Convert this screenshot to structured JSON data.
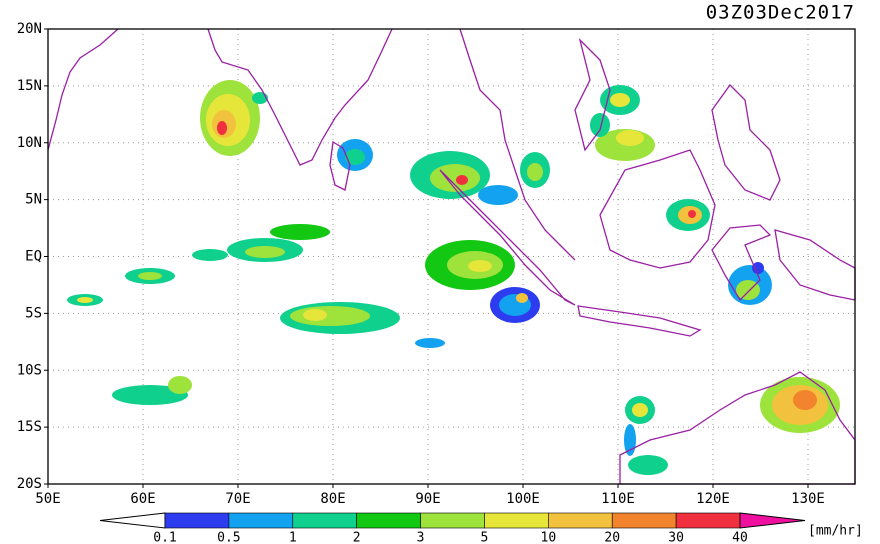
{
  "title": "03Z03Dec2017",
  "lat_labels": [
    "20N",
    "15N",
    "10N",
    "5N",
    "EQ",
    "5S",
    "10S",
    "15S",
    "20S"
  ],
  "lon_labels": [
    "50E",
    "60E",
    "70E",
    "80E",
    "90E",
    "100E",
    "110E",
    "120E",
    "130E"
  ],
  "colorbar": {
    "levels": [
      0.1,
      0.5,
      1,
      2,
      3,
      5,
      10,
      20,
      30,
      40
    ],
    "colors": [
      "#ffffff",
      "#2e3cf0",
      "#12a2f0",
      "#10d08e",
      "#12c812",
      "#9ee23c",
      "#e6e63a",
      "#f2c23e",
      "#f2842e",
      "#f0303e",
      "#f010a0"
    ],
    "unit": "[mm/hr]"
  }
}
